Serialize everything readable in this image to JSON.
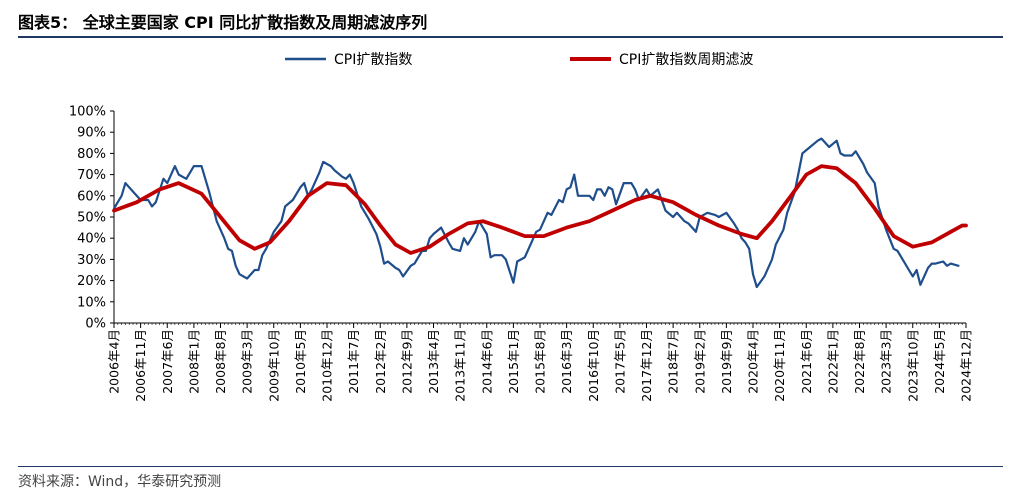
{
  "title": "图表5： 全球主要国家 CPI 同比扩散指数及周期滤波序列",
  "source": "资料来源：Wind，华泰研究预测",
  "colors": {
    "series1": "#1f4e8c",
    "series2": "#c00000",
    "rule": "#1f3864"
  },
  "chart_data": {
    "type": "line",
    "xlabel": "",
    "ylabel": "",
    "ylim": [
      0,
      100
    ],
    "yticks": [
      "0%",
      "10%",
      "20%",
      "30%",
      "40%",
      "50%",
      "60%",
      "70%",
      "80%",
      "90%",
      "100%"
    ],
    "x_range": [
      "2006-04",
      "2024-12"
    ],
    "xtick_labels": [
      "2006年4月",
      "2006年11月",
      "2007年6月",
      "2008年1月",
      "2008年8月",
      "2009年3月",
      "2009年10月",
      "2010年5月",
      "2010年12月",
      "2011年7月",
      "2012年2月",
      "2012年9月",
      "2013年4月",
      "2013年11月",
      "2014年6月",
      "2015年1月",
      "2015年8月",
      "2016年3月",
      "2016年10月",
      "2017年5月",
      "2017年12月",
      "2018年7月",
      "2019年2月",
      "2019年9月",
      "2020年4月",
      "2020年11月",
      "2021年6月",
      "2022年1月",
      "2022年8月",
      "2023年3月",
      "2023年10月",
      "2024年5月",
      "2024年12月"
    ],
    "legend_position": "top",
    "series": [
      {
        "name": "CPI扩散指数",
        "color": "#1f4e8c",
        "points": [
          [
            "2006-04",
            54
          ],
          [
            "2006-06",
            60
          ],
          [
            "2006-07",
            66
          ],
          [
            "2006-09",
            62
          ],
          [
            "2006-11",
            58
          ],
          [
            "2007-01",
            58
          ],
          [
            "2007-02",
            55
          ],
          [
            "2007-03",
            57
          ],
          [
            "2007-05",
            68
          ],
          [
            "2007-06",
            66
          ],
          [
            "2007-08",
            74
          ],
          [
            "2007-09",
            70
          ],
          [
            "2007-11",
            68
          ],
          [
            "2008-01",
            74
          ],
          [
            "2008-03",
            74
          ],
          [
            "2008-05",
            62
          ],
          [
            "2008-07",
            48
          ],
          [
            "2008-09",
            40
          ],
          [
            "2008-10",
            35
          ],
          [
            "2008-11",
            34
          ],
          [
            "2008-12",
            27
          ],
          [
            "2009-01",
            23
          ],
          [
            "2009-03",
            21
          ],
          [
            "2009-05",
            25
          ],
          [
            "2009-06",
            25
          ],
          [
            "2009-07",
            32
          ],
          [
            "2009-08",
            35
          ],
          [
            "2009-10",
            43
          ],
          [
            "2009-12",
            48
          ],
          [
            "2010-01",
            55
          ],
          [
            "2010-03",
            58
          ],
          [
            "2010-05",
            64
          ],
          [
            "2010-06",
            66
          ],
          [
            "2010-07",
            60
          ],
          [
            "2010-08",
            63
          ],
          [
            "2010-10",
            71
          ],
          [
            "2010-11",
            76
          ],
          [
            "2011-01",
            74
          ],
          [
            "2011-02",
            72
          ],
          [
            "2011-04",
            69
          ],
          [
            "2011-05",
            68
          ],
          [
            "2011-06",
            70
          ],
          [
            "2011-07",
            66
          ],
          [
            "2011-09",
            55
          ],
          [
            "2011-11",
            49
          ],
          [
            "2012-01",
            42
          ],
          [
            "2012-02",
            36
          ],
          [
            "2012-03",
            28
          ],
          [
            "2012-04",
            29
          ],
          [
            "2012-06",
            26
          ],
          [
            "2012-07",
            25
          ],
          [
            "2012-08",
            22
          ],
          [
            "2012-10",
            27
          ],
          [
            "2012-11",
            28
          ],
          [
            "2013-01",
            34
          ],
          [
            "2013-02",
            34
          ],
          [
            "2013-03",
            40
          ],
          [
            "2013-04",
            42
          ],
          [
            "2013-06",
            45
          ],
          [
            "2013-08",
            38
          ],
          [
            "2013-09",
            35
          ],
          [
            "2013-11",
            34
          ],
          [
            "2013-12",
            40
          ],
          [
            "2014-01",
            37
          ],
          [
            "2014-03",
            43
          ],
          [
            "2014-04",
            48
          ],
          [
            "2014-06",
            42
          ],
          [
            "2014-07",
            31
          ],
          [
            "2014-08",
            32
          ],
          [
            "2014-10",
            32
          ],
          [
            "2014-11",
            30
          ],
          [
            "2015-01",
            19
          ],
          [
            "2015-02",
            29
          ],
          [
            "2015-04",
            31
          ],
          [
            "2015-05",
            35
          ],
          [
            "2015-07",
            43
          ],
          [
            "2015-08",
            44
          ],
          [
            "2015-10",
            52
          ],
          [
            "2015-11",
            51
          ],
          [
            "2016-01",
            58
          ],
          [
            "2016-02",
            57
          ],
          [
            "2016-03",
            63
          ],
          [
            "2016-04",
            64
          ],
          [
            "2016-05",
            70
          ],
          [
            "2016-06",
            60
          ],
          [
            "2016-08",
            60
          ],
          [
            "2016-09",
            60
          ],
          [
            "2016-10",
            58
          ],
          [
            "2016-11",
            63
          ],
          [
            "2016-12",
            63
          ],
          [
            "2017-01",
            60
          ],
          [
            "2017-02",
            64
          ],
          [
            "2017-03",
            63
          ],
          [
            "2017-04",
            56
          ],
          [
            "2017-06",
            66
          ],
          [
            "2017-08",
            66
          ],
          [
            "2017-09",
            63
          ],
          [
            "2017-10",
            58
          ],
          [
            "2017-12",
            63
          ],
          [
            "2018-01",
            60
          ],
          [
            "2018-03",
            63
          ],
          [
            "2018-04",
            58
          ],
          [
            "2018-05",
            53
          ],
          [
            "2018-07",
            50
          ],
          [
            "2018-08",
            52
          ],
          [
            "2018-10",
            48
          ],
          [
            "2018-11",
            47
          ],
          [
            "2019-01",
            43
          ],
          [
            "2019-02",
            50
          ],
          [
            "2019-04",
            52
          ],
          [
            "2019-06",
            51
          ],
          [
            "2019-07",
            50
          ],
          [
            "2019-09",
            52
          ],
          [
            "2019-11",
            47
          ],
          [
            "2019-12",
            44
          ],
          [
            "2020-01",
            40
          ],
          [
            "2020-02",
            38
          ],
          [
            "2020-03",
            35
          ],
          [
            "2020-04",
            23
          ],
          [
            "2020-05",
            17
          ],
          [
            "2020-07",
            22
          ],
          [
            "2020-09",
            30
          ],
          [
            "2020-10",
            37
          ],
          [
            "2020-12",
            44
          ],
          [
            "2021-01",
            52
          ],
          [
            "2021-03",
            62
          ],
          [
            "2021-05",
            80
          ],
          [
            "2021-07",
            83
          ],
          [
            "2021-09",
            86
          ],
          [
            "2021-10",
            87
          ],
          [
            "2021-12",
            83
          ],
          [
            "2022-02",
            86
          ],
          [
            "2022-03",
            80
          ],
          [
            "2022-04",
            79
          ],
          [
            "2022-06",
            79
          ],
          [
            "2022-07",
            81
          ],
          [
            "2022-09",
            75
          ],
          [
            "2022-10",
            71
          ],
          [
            "2022-12",
            66
          ],
          [
            "2023-01",
            55
          ],
          [
            "2023-03",
            44
          ],
          [
            "2023-05",
            35
          ],
          [
            "2023-06",
            34
          ],
          [
            "2023-08",
            28
          ],
          [
            "2023-09",
            25
          ],
          [
            "2023-10",
            22
          ],
          [
            "2023-11",
            25
          ],
          [
            "2023-12",
            18
          ],
          [
            "2024-02",
            26
          ],
          [
            "2024-03",
            28
          ],
          [
            "2024-04",
            28
          ],
          [
            "2024-06",
            29
          ],
          [
            "2024-07",
            27
          ],
          [
            "2024-08",
            28
          ],
          [
            "2024-10",
            27
          ]
        ]
      },
      {
        "name": "CPI扩散指数周期滤波",
        "color": "#c00000",
        "points": [
          [
            "2006-04",
            53
          ],
          [
            "2006-10",
            57
          ],
          [
            "2007-04",
            63
          ],
          [
            "2007-09",
            66
          ],
          [
            "2008-03",
            61
          ],
          [
            "2008-08",
            50
          ],
          [
            "2009-01",
            39
          ],
          [
            "2009-05",
            35
          ],
          [
            "2009-09",
            38
          ],
          [
            "2010-02",
            48
          ],
          [
            "2010-07",
            60
          ],
          [
            "2010-12",
            66
          ],
          [
            "2011-05",
            65
          ],
          [
            "2011-10",
            56
          ],
          [
            "2012-02",
            46
          ],
          [
            "2012-06",
            37
          ],
          [
            "2012-10",
            33
          ],
          [
            "2013-03",
            36
          ],
          [
            "2013-08",
            42
          ],
          [
            "2014-01",
            47
          ],
          [
            "2014-05",
            48
          ],
          [
            "2014-10",
            45
          ],
          [
            "2015-04",
            41
          ],
          [
            "2015-09",
            41
          ],
          [
            "2016-03",
            45
          ],
          [
            "2016-09",
            48
          ],
          [
            "2017-03",
            53
          ],
          [
            "2017-09",
            58
          ],
          [
            "2018-01",
            60
          ],
          [
            "2018-07",
            57
          ],
          [
            "2019-01",
            51
          ],
          [
            "2019-07",
            46
          ],
          [
            "2020-01",
            42
          ],
          [
            "2020-05",
            40
          ],
          [
            "2020-09",
            48
          ],
          [
            "2021-02",
            60
          ],
          [
            "2021-06",
            70
          ],
          [
            "2021-10",
            74
          ],
          [
            "2022-02",
            73
          ],
          [
            "2022-07",
            66
          ],
          [
            "2022-12",
            54
          ],
          [
            "2023-05",
            41
          ],
          [
            "2023-10",
            36
          ],
          [
            "2024-03",
            38
          ],
          [
            "2024-08",
            43
          ],
          [
            "2024-11",
            46
          ],
          [
            "2024-12",
            46
          ]
        ]
      }
    ]
  }
}
